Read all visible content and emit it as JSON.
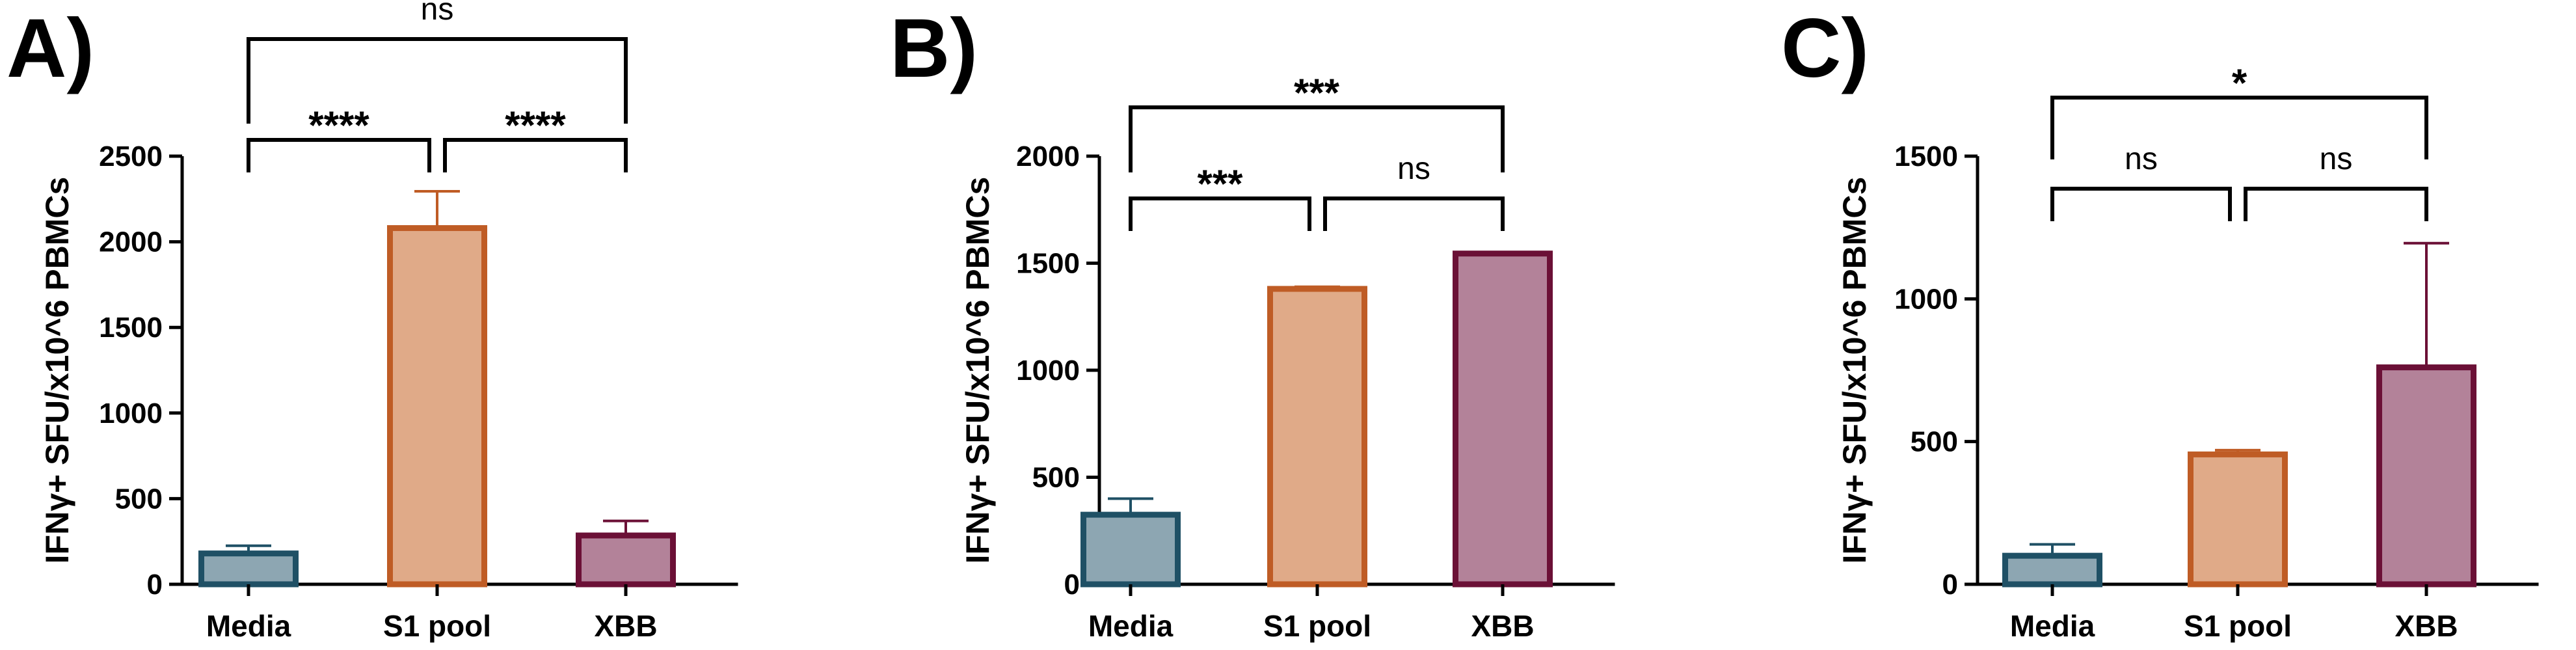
{
  "chart_data": [
    {
      "type": "bar",
      "panel_label": "A)",
      "ylabel": "IFNγ+ SFU/x10^6 PBMCs",
      "categories": [
        "Media",
        "S1 pool",
        "XBB"
      ],
      "values": [
        180,
        2080,
        285
      ],
      "errors": [
        45,
        215,
        85
      ],
      "ylim": [
        0,
        2500
      ],
      "yticks": [
        0,
        500,
        1000,
        1500,
        2000,
        2500
      ],
      "colors": {
        "fill": [
          "#8da6b2",
          "#e0aa88",
          "#b38299"
        ],
        "stroke": [
          "#1f5065",
          "#bf5c25",
          "#6b1036"
        ]
      },
      "significance": [
        {
          "from": 0,
          "to": 1,
          "label": "****",
          "level": 1
        },
        {
          "from": 1,
          "to": 2,
          "label": "****",
          "level": 1
        },
        {
          "from": 0,
          "to": 2,
          "label": "ns",
          "level": 2
        }
      ]
    },
    {
      "type": "bar",
      "panel_label": "B)",
      "ylabel": "IFNγ+ SFU/x10^6 PBMCs",
      "categories": [
        "Media",
        "S1 pool",
        "XBB"
      ],
      "values": [
        325,
        1380,
        1545
      ],
      "errors": [
        75,
        10,
        0
      ],
      "ylim": [
        0,
        2000
      ],
      "yticks": [
        0,
        500,
        1000,
        1500,
        2000
      ],
      "colors": {
        "fill": [
          "#8da6b2",
          "#e0aa88",
          "#b38299"
        ],
        "stroke": [
          "#1f5065",
          "#bf5c25",
          "#6b1036"
        ]
      },
      "significance": [
        {
          "from": 0,
          "to": 1,
          "label": "***",
          "level": 1
        },
        {
          "from": 1,
          "to": 2,
          "label": "ns",
          "level": 1
        },
        {
          "from": 0,
          "to": 2,
          "label": "***",
          "level": 2
        }
      ]
    },
    {
      "type": "bar",
      "panel_label": "C)",
      "ylabel": "IFNγ+ SFU/x10^6 PBMCs",
      "categories": [
        "Media",
        "S1 pool",
        "XBB"
      ],
      "values": [
        100,
        455,
        760
      ],
      "errors": [
        40,
        15,
        435
      ],
      "ylim": [
        0,
        1500
      ],
      "yticks": [
        0,
        500,
        1000,
        1500
      ],
      "colors": {
        "fill": [
          "#8da6b2",
          "#e0aa88",
          "#b38299"
        ],
        "stroke": [
          "#1f5065",
          "#bf5c25",
          "#6b1036"
        ]
      },
      "significance": [
        {
          "from": 0,
          "to": 1,
          "label": "ns",
          "level": 1
        },
        {
          "from": 1,
          "to": 2,
          "label": "ns",
          "level": 1
        },
        {
          "from": 0,
          "to": 2,
          "label": "*",
          "level": 2
        }
      ]
    }
  ]
}
